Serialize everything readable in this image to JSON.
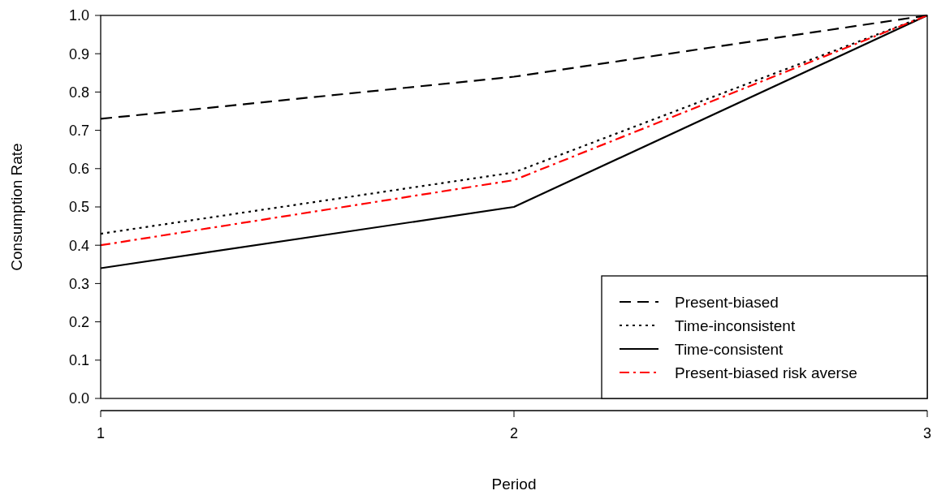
{
  "chart_data": {
    "type": "line",
    "xlabel": "Period",
    "ylabel": "Consumption Rate",
    "x": [
      1,
      2,
      3
    ],
    "xlim": [
      1,
      3
    ],
    "xticks": [
      1,
      2,
      3
    ],
    "ylim": [
      0,
      1
    ],
    "yticks": [
      {
        "value": 0,
        "label": "0.0"
      },
      {
        "value": 0.1,
        "label": "0.1"
      },
      {
        "value": 0.2,
        "label": "0.2"
      },
      {
        "value": 0.3,
        "label": "0.3"
      },
      {
        "value": 0.4,
        "label": "0.4"
      },
      {
        "value": 0.5,
        "label": "0.5"
      },
      {
        "value": 0.6,
        "label": "0.6"
      },
      {
        "value": 0.7,
        "label": "0.7"
      },
      {
        "value": 0.8,
        "label": "0.8"
      },
      {
        "value": 0.9,
        "label": "0.9"
      },
      {
        "value": 1,
        "label": "1.0"
      }
    ],
    "grid": false,
    "legend": "bottom right",
    "marker": "none",
    "series": [
      {
        "name": "Present-biased",
        "color": "#000000",
        "line_style": "dashed",
        "values": [
          0.73,
          0.84,
          1
        ]
      },
      {
        "name": "Time-inconsistent",
        "color": "#000000",
        "line_style": "dotted",
        "values": [
          0.43,
          0.59,
          1
        ]
      },
      {
        "name": "Time-consistent",
        "color": "#000000",
        "line_style": "solid",
        "values": [
          0.34,
          0.5,
          1
        ]
      },
      {
        "name": "Present-biased risk averse",
        "color": "#ff0000",
        "line_style": "dashdot",
        "values": [
          0.4,
          0.57,
          1
        ]
      }
    ]
  }
}
